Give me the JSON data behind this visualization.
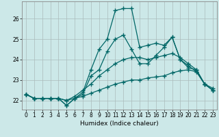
{
  "xlabel": "Humidex (Indice chaleur)",
  "background_color": "#cce8e8",
  "grid_color": "#aabbbb",
  "line_color": "#006666",
  "xlim": [
    -0.5,
    23.5
  ],
  "ylim": [
    21.55,
    26.85
  ],
  "yticks": [
    22,
    23,
    24,
    25,
    26
  ],
  "xticks": [
    0,
    1,
    2,
    3,
    4,
    5,
    6,
    7,
    8,
    9,
    10,
    11,
    12,
    13,
    14,
    15,
    16,
    17,
    18,
    19,
    20,
    21,
    22,
    23
  ],
  "series": [
    [
      22.3,
      22.1,
      22.1,
      22.1,
      22.1,
      21.75,
      22.1,
      22.4,
      23.5,
      24.5,
      25.0,
      26.4,
      26.5,
      26.5,
      24.6,
      24.7,
      24.8,
      24.7,
      25.1,
      24.0,
      23.6,
      23.5,
      22.8,
      22.6
    ],
    [
      22.3,
      22.1,
      22.1,
      22.1,
      22.1,
      21.75,
      22.1,
      22.3,
      23.2,
      23.5,
      24.4,
      25.0,
      25.2,
      24.5,
      23.8,
      23.8,
      24.2,
      24.6,
      25.1,
      24.0,
      23.7,
      23.4,
      22.8,
      22.5
    ],
    [
      22.3,
      22.1,
      22.1,
      22.1,
      22.1,
      22.0,
      22.2,
      22.5,
      22.8,
      23.2,
      23.5,
      23.8,
      24.0,
      24.1,
      24.1,
      24.0,
      24.1,
      24.2,
      24.3,
      24.1,
      23.8,
      23.5,
      22.8,
      22.5
    ],
    [
      22.3,
      22.1,
      22.1,
      22.1,
      22.1,
      22.0,
      22.1,
      22.2,
      22.35,
      22.5,
      22.65,
      22.8,
      22.9,
      23.0,
      23.0,
      23.1,
      23.15,
      23.2,
      23.35,
      23.45,
      23.5,
      23.4,
      22.8,
      22.5
    ]
  ]
}
